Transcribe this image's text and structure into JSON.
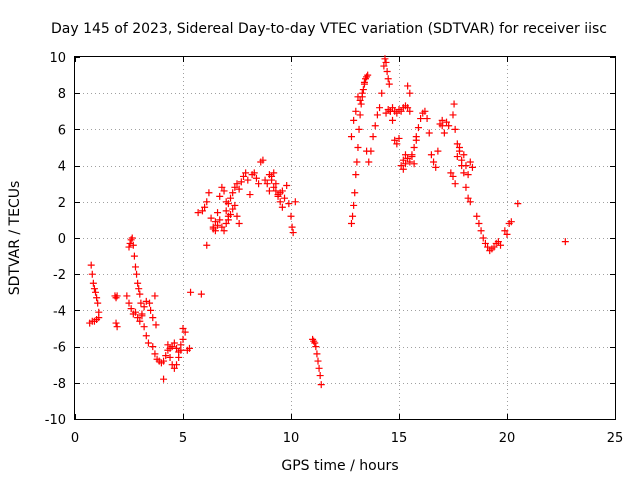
{
  "chart_data": {
    "type": "scatter",
    "title": "Day 145 of 2023, Sidereal Day-to-day VTEC variation (SDTVAR) for receiver iisc",
    "xlabel": "GPS time / hours",
    "ylabel": "SDTVAR / TECUs",
    "xlim": [
      0,
      25
    ],
    "ylim": [
      -10,
      10
    ],
    "xticks": [
      0,
      5,
      10,
      15,
      20,
      25
    ],
    "yticks": [
      -10,
      -8,
      -6,
      -4,
      -2,
      0,
      2,
      4,
      6,
      8,
      10
    ],
    "grid": true,
    "marker": "+",
    "color": "#ff0000",
    "series": [
      {
        "name": "seg-a-left",
        "x": [
          0.68,
          0.8,
          0.9,
          1.0,
          1.1
        ],
        "y": [
          -4.7,
          -4.6,
          -4.6,
          -4.5,
          -4.4
        ]
      },
      {
        "name": "seg-a-rise",
        "x": [
          0.75,
          0.8,
          0.85,
          0.9,
          0.95,
          1.0,
          1.05,
          1.1
        ],
        "y": [
          -1.5,
          -2.0,
          -2.5,
          -2.8,
          -3.0,
          -3.3,
          -3.6,
          -4.1
        ]
      },
      {
        "name": "seg-b",
        "x": [
          1.85,
          1.9,
          1.95,
          1.9,
          1.95
        ],
        "y": [
          -3.2,
          -3.3,
          -3.2,
          -4.7,
          -4.9
        ]
      },
      {
        "name": "seg-c-peak",
        "x": [
          2.5,
          2.55,
          2.6,
          2.65,
          2.7,
          2.75,
          2.8,
          2.85,
          2.9,
          2.95,
          3.0,
          3.05,
          3.1,
          3.2,
          3.3,
          3.4
        ],
        "y": [
          -0.5,
          -0.3,
          -0.1,
          0.0,
          -0.4,
          -1.0,
          -1.6,
          -2.0,
          -2.5,
          -2.8,
          -3.1,
          -3.6,
          -4.2,
          -4.9,
          -5.4,
          -5.8
        ]
      },
      {
        "name": "seg-c-spread",
        "x": [
          2.4,
          2.5,
          2.6,
          2.7,
          2.8,
          2.9,
          3.0,
          3.1,
          3.2,
          3.3,
          3.45,
          3.5,
          3.6,
          3.7,
          3.75
        ],
        "y": [
          -3.2,
          -3.6,
          -3.9,
          -4.2,
          -4.1,
          -4.4,
          -4.6,
          -4.3,
          -3.8,
          -3.5,
          -3.6,
          -4.0,
          -4.4,
          -3.2,
          -4.8
        ]
      },
      {
        "name": "seg-d-trough",
        "x": [
          3.6,
          3.7,
          3.8,
          3.9,
          4.0,
          4.1,
          4.2,
          4.3,
          4.4,
          4.5,
          4.6,
          4.7,
          4.8,
          4.9,
          5.0,
          5.1,
          5.2,
          5.3
        ],
        "y": [
          -6.0,
          -6.4,
          -6.7,
          -6.8,
          -6.9,
          -6.8,
          -6.5,
          -6.2,
          -6.6,
          -7.0,
          -7.2,
          -7.0,
          -6.6,
          -6.2,
          -5.6,
          -5.2,
          -6.2,
          -6.1
        ]
      },
      {
        "name": "seg-d-upper",
        "x": [
          4.3,
          4.4,
          4.5,
          4.6,
          4.7,
          4.8,
          4.9,
          5.0
        ],
        "y": [
          -5.9,
          -6.1,
          -6.0,
          -5.8,
          -6.1,
          -6.3,
          -5.9,
          -5.0
        ]
      },
      {
        "name": "seg-d-outliers",
        "x": [
          4.1,
          5.35,
          5.85,
          6.1
        ],
        "y": [
          -7.8,
          -3.0,
          -3.1,
          -0.4
        ]
      },
      {
        "name": "seg-e",
        "x": [
          5.7,
          5.9,
          6.0,
          6.1,
          6.2,
          6.3,
          6.4,
          6.5,
          6.6,
          6.7,
          6.8,
          6.9,
          7.0,
          7.1
        ],
        "y": [
          1.4,
          1.5,
          1.7,
          2.0,
          2.5,
          1.1,
          0.6,
          0.9,
          1.4,
          2.3,
          2.8,
          2.6,
          2.0,
          1.2
        ]
      },
      {
        "name": "seg-e-low",
        "x": [
          6.4,
          6.5,
          6.6,
          6.7,
          6.8,
          6.9,
          7.0
        ],
        "y": [
          0.5,
          0.4,
          0.7,
          1.0,
          0.6,
          0.4,
          0.8
        ]
      },
      {
        "name": "seg-f",
        "x": [
          7.0,
          7.1,
          7.2,
          7.3,
          7.4,
          7.5,
          7.6,
          7.7,
          7.8,
          7.9,
          8.0,
          8.1,
          8.2,
          8.3,
          8.4,
          8.5
        ],
        "y": [
          1.5,
          1.9,
          2.2,
          2.5,
          2.8,
          3.0,
          2.7,
          3.1,
          3.4,
          3.6,
          3.2,
          2.4,
          3.5,
          3.6,
          3.3,
          3.0
        ]
      },
      {
        "name": "seg-f-low",
        "x": [
          7.1,
          7.2,
          7.3,
          7.4,
          7.5,
          7.6
        ],
        "y": [
          1.0,
          1.3,
          1.6,
          1.8,
          1.2,
          0.8
        ]
      },
      {
        "name": "seg-g",
        "x": [
          8.6,
          8.7,
          8.8,
          8.9,
          9.0,
          9.1,
          9.2,
          9.3,
          9.4,
          9.5,
          9.6,
          9.7,
          9.8,
          9.9,
          10.0,
          10.05,
          10.1,
          10.2
        ],
        "y": [
          4.2,
          4.3,
          3.2,
          3.0,
          2.6,
          3.4,
          3.6,
          3.0,
          2.3,
          2.0,
          1.7,
          2.2,
          2.9,
          1.9,
          1.2,
          0.6,
          0.3,
          2.0
        ]
      },
      {
        "name": "seg-g-mid",
        "x": [
          9.0,
          9.1,
          9.2,
          9.3,
          9.4,
          9.5,
          9.6
        ],
        "y": [
          3.5,
          3.2,
          2.8,
          2.6,
          2.4,
          2.5,
          2.6
        ]
      },
      {
        "name": "seg-h",
        "x": [
          11.0,
          11.05,
          11.1,
          11.15,
          11.2,
          11.25,
          11.3,
          11.35,
          11.4
        ],
        "y": [
          -5.6,
          -5.7,
          -5.8,
          -6.0,
          -6.4,
          -6.8,
          -7.2,
          -7.6,
          -8.1
        ]
      },
      {
        "name": "seg-i",
        "x": [
          12.8,
          12.85,
          12.9,
          12.95,
          13.0,
          13.05,
          13.1,
          13.15,
          13.2,
          13.25,
          13.3,
          13.35,
          13.4,
          13.45,
          13.5,
          13.55
        ],
        "y": [
          0.8,
          1.2,
          1.8,
          2.5,
          3.5,
          4.2,
          5.0,
          6.0,
          6.8,
          7.4,
          7.8,
          8.2,
          8.5,
          8.8,
          8.9,
          9.0
        ]
      },
      {
        "name": "seg-i-upper",
        "x": [
          12.8,
          12.9,
          13.0,
          13.1,
          13.2,
          13.3,
          13.4
        ],
        "y": [
          5.6,
          6.5,
          7.0,
          7.8,
          7.6,
          8.0,
          8.6
        ]
      },
      {
        "name": "seg-j",
        "x": [
          13.5,
          13.6,
          13.7,
          13.8,
          13.9,
          14.0,
          14.1,
          14.2,
          14.3,
          14.35,
          14.4,
          14.45,
          14.5,
          14.55,
          14.6,
          14.7,
          14.8,
          14.9,
          15.0
        ],
        "y": [
          4.8,
          4.2,
          4.8,
          5.6,
          6.2,
          6.8,
          7.2,
          8.0,
          9.5,
          9.9,
          9.7,
          9.2,
          8.8,
          8.5,
          7.0,
          6.5,
          5.4,
          5.2,
          5.5
        ]
      },
      {
        "name": "seg-j-band",
        "x": [
          14.4,
          14.5,
          14.6,
          14.7,
          14.8,
          14.9,
          15.0,
          15.1,
          15.2,
          15.3,
          15.4,
          15.5
        ],
        "y": [
          6.9,
          7.1,
          7.0,
          7.2,
          7.0,
          6.9,
          7.1,
          7.0,
          7.2,
          7.3,
          7.2,
          7.0
        ]
      },
      {
        "name": "seg-k",
        "x": [
          15.1,
          15.2,
          15.3,
          15.4,
          15.5,
          15.6,
          15.7,
          15.8,
          15.9,
          16.0,
          16.1,
          16.2,
          16.3,
          16.4,
          16.5,
          16.6,
          16.7,
          16.8,
          16.9,
          17.0
        ],
        "y": [
          4.0,
          4.3,
          4.6,
          8.4,
          8.0,
          4.5,
          4.1,
          5.6,
          6.1,
          6.6,
          6.9,
          7.0,
          6.6,
          5.8,
          4.6,
          4.2,
          3.9,
          4.8,
          6.3,
          6.5
        ]
      },
      {
        "name": "seg-k-lower",
        "x": [
          15.2,
          15.3,
          15.4,
          15.5,
          15.6,
          15.7,
          15.8
        ],
        "y": [
          3.8,
          4.1,
          4.4,
          4.2,
          4.6,
          5.0,
          5.4
        ]
      },
      {
        "name": "seg-l",
        "x": [
          17.0,
          17.1,
          17.2,
          17.3,
          17.4,
          17.5,
          17.55,
          17.6,
          17.7,
          17.8,
          17.9,
          18.0,
          18.1,
          18.2,
          18.3,
          18.4
        ],
        "y": [
          6.2,
          5.8,
          6.4,
          6.2,
          3.6,
          6.8,
          7.4,
          6.0,
          5.2,
          4.8,
          4.3,
          4.6,
          4.0,
          3.5,
          4.2,
          3.9
        ]
      },
      {
        "name": "seg-l-low",
        "x": [
          17.5,
          17.6,
          17.7,
          17.8,
          17.9,
          18.0,
          18.1,
          18.2,
          18.3
        ],
        "y": [
          3.4,
          3.0,
          4.5,
          5.0,
          4.0,
          3.6,
          2.8,
          2.2,
          2.0
        ]
      },
      {
        "name": "seg-m",
        "x": [
          18.6,
          18.7,
          18.8,
          18.9,
          19.0,
          19.1,
          19.2,
          19.3,
          19.4,
          19.5,
          19.6,
          19.7
        ],
        "y": [
          1.2,
          0.8,
          0.4,
          0.0,
          -0.3,
          -0.5,
          -0.7,
          -0.6,
          -0.5,
          -0.3,
          -0.2,
          -0.4
        ]
      },
      {
        "name": "seg-n",
        "x": [
          19.9,
          20.0,
          20.1,
          20.2,
          20.5,
          22.7
        ],
        "y": [
          0.4,
          0.2,
          0.8,
          0.9,
          1.9,
          -0.2
        ]
      }
    ]
  }
}
